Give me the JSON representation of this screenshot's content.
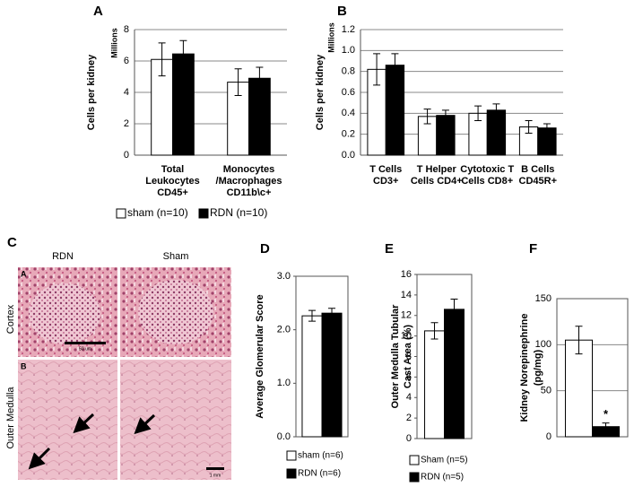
{
  "chart_data": [
    {
      "type": "bar",
      "panel_label": "A",
      "ylabel": [
        "Cells per kidney"
      ],
      "y_unit": "Millions",
      "categories": [
        [
          "Total",
          "Leukocytes",
          "CD45+"
        ],
        [
          "Monocytes",
          "/Macrophages",
          "CD11b\\c+"
        ]
      ],
      "series": [
        {
          "name": "sham (n=10)",
          "color": "#ffffff",
          "values": [
            6.1,
            4.65
          ],
          "errors": [
            1.05,
            0.85
          ]
        },
        {
          "name": "RDN (n=10)",
          "color": "#000000",
          "values": [
            6.45,
            4.9
          ],
          "errors": [
            0.85,
            0.7
          ]
        }
      ],
      "ylim": [
        0,
        8
      ],
      "yticks": [
        0,
        2,
        4,
        6,
        8
      ],
      "grid": true
    },
    {
      "type": "bar",
      "panel_label": "B",
      "ylabel": [
        "Cells per kidney"
      ],
      "y_unit": "Millions",
      "categories": [
        [
          "T Cells",
          "CD3+"
        ],
        [
          "T Helper",
          "Cells CD4+"
        ],
        [
          "Cytotoxic T",
          "Cells CD8+"
        ],
        [
          "B Cells",
          "CD45R+"
        ]
      ],
      "series": [
        {
          "color": "#ffffff",
          "values": [
            0.82,
            0.37,
            0.4,
            0.27
          ],
          "errors": [
            0.15,
            0.07,
            0.07,
            0.06
          ]
        },
        {
          "color": "#000000",
          "values": [
            0.86,
            0.38,
            0.43,
            0.26
          ],
          "errors": [
            0.11,
            0.05,
            0.06,
            0.04
          ]
        }
      ],
      "ylim": [
        0,
        1.2
      ],
      "yticks": [
        {
          "value": 0,
          "label": "0.0"
        },
        {
          "value": 0.2,
          "label": "0.2"
        },
        {
          "value": 0.4,
          "label": "0.4"
        },
        {
          "value": 0.6,
          "label": "0.6"
        },
        {
          "value": 0.8,
          "label": "0.8"
        },
        {
          "value": 1,
          "label": "1.0"
        },
        {
          "value": 1.2,
          "label": "1.2"
        }
      ],
      "grid": true
    },
    {
      "type": "bar",
      "panel_label": "D",
      "ylabel": [
        "Average Glomerular Score"
      ],
      "series": [
        {
          "name": "sham (n=6)",
          "color": "#ffffff",
          "values": [
            2.26
          ],
          "errors": [
            0.1
          ]
        },
        {
          "name": "RDN (n=6)",
          "color": "#000000",
          "values": [
            2.31
          ],
          "errors": [
            0.09
          ]
        }
      ],
      "ylim": [
        0,
        3
      ],
      "yticks": [
        {
          "value": 0,
          "label": "0.0"
        },
        {
          "value": 1,
          "label": "1.0"
        },
        {
          "value": 2,
          "label": "2.0"
        },
        {
          "value": 3,
          "label": "3.0"
        }
      ],
      "grid": false
    },
    {
      "type": "bar",
      "panel_label": "E",
      "ylabel": [
        "Outer Medulla Tubular",
        "Cast Area (%)"
      ],
      "series": [
        {
          "name": "Sham (n=5)",
          "color": "#ffffff",
          "values": [
            10.5
          ],
          "errors": [
            0.8
          ]
        },
        {
          "name": "RDN (n=5)",
          "color": "#000000",
          "values": [
            12.6
          ],
          "errors": [
            1.0
          ]
        }
      ],
      "ylim": [
        0,
        16
      ],
      "yticks": [
        0,
        2,
        4,
        6,
        8,
        10,
        12,
        14,
        16
      ],
      "grid": false
    },
    {
      "type": "bar",
      "panel_label": "F",
      "ylabel": [
        "Kidney Norepinephrine",
        "(pg/mg)"
      ],
      "series": [
        {
          "color": "#ffffff",
          "values": [
            105
          ],
          "errors": [
            15
          ]
        },
        {
          "color": "#000000",
          "values": [
            11
          ],
          "errors": [
            4
          ]
        }
      ],
      "annotation": "*",
      "ylim": [
        0,
        150
      ],
      "yticks": [
        0,
        50,
        100,
        150
      ],
      "grid": true
    }
  ],
  "panel_c": {
    "panel_label": "C",
    "columns": [
      "RDN",
      "Sham"
    ],
    "rows": [
      "Cortex",
      "Outer Medulla"
    ],
    "subpanels": [
      "A",
      "B"
    ],
    "scale_bars": [
      "50 um",
      "1 mm"
    ]
  }
}
